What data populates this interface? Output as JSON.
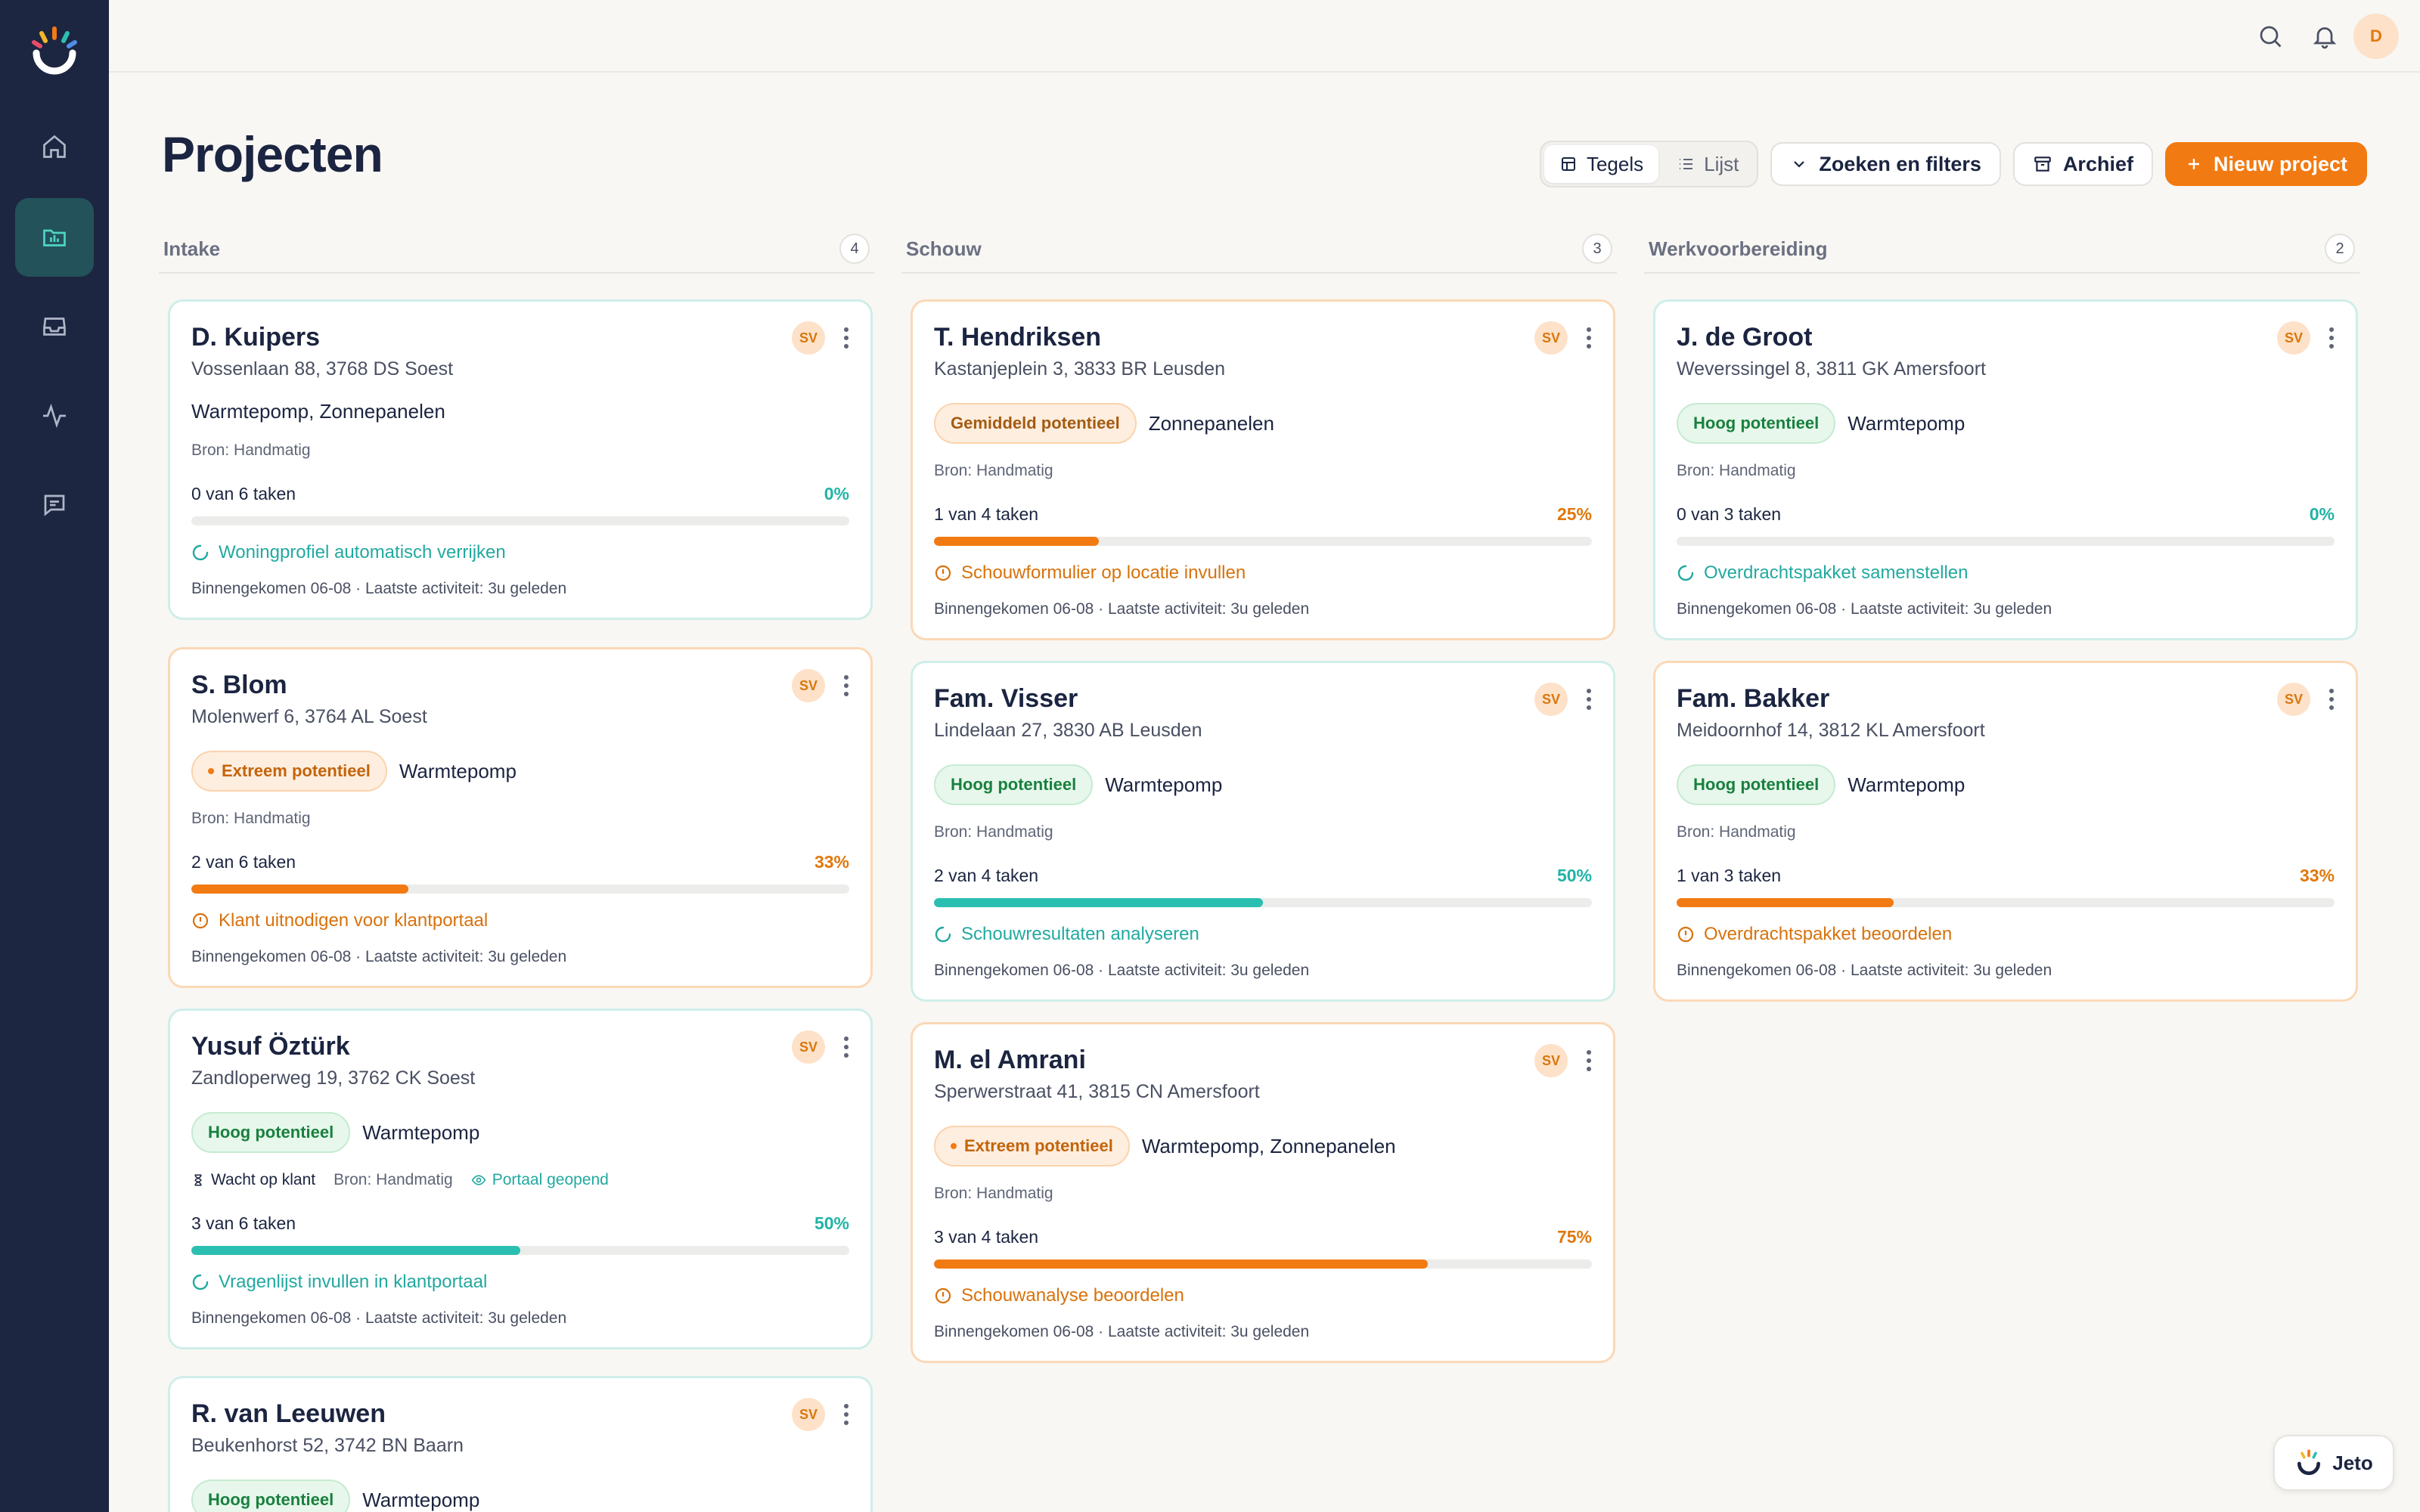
{
  "sidebar": {
    "items": [
      {
        "name": "home-icon",
        "active": false
      },
      {
        "name": "projects-folder-icon",
        "active": true
      },
      {
        "name": "inbox-icon",
        "active": false
      },
      {
        "name": "activity-icon",
        "active": false
      },
      {
        "name": "messages-icon",
        "active": false
      }
    ]
  },
  "topbar": {
    "avatar_initial": "D"
  },
  "page": {
    "title": "Projecten"
  },
  "toolbar": {
    "view_tiles": "Tegels",
    "view_list": "Lijst",
    "filters": "Zoeken en filters",
    "archive": "Archief",
    "new_project": "Nieuw project"
  },
  "columns": [
    {
      "title": "Intake",
      "count": "4",
      "cards": [
        {
          "name": "D. Kuipers",
          "address": "Vossenlaan 88, 3768 DS Soest",
          "assignee": "SV",
          "products": "Warmtepomp, Zonnepanelen",
          "source": "Bron: Handmatig",
          "tasks": "0 van 6 taken",
          "pct": "0%",
          "progress": 0,
          "next": "Woningprofiel automatisch verrijken",
          "footer": "Binnengekomen 06-08 · Laatste activiteit: 3u geleden"
        },
        {
          "name": "S. Blom",
          "address": "Molenwerf 6, 3764 AL Soest",
          "assignee": "SV",
          "badge": "Extreem potentieel",
          "products": "Warmtepomp",
          "source": "Bron: Handmatig",
          "tasks": "2 van 6 taken",
          "pct": "33%",
          "progress": 0.33,
          "next": "Klant uitnodigen voor klantportaal",
          "footer": "Binnengekomen 06-08 · Laatste activiteit: 3u geleden"
        },
        {
          "name": "Yusuf Öztürk",
          "address": "Zandloperweg 19, 3762 CK Soest",
          "assignee": "SV",
          "badge": "Hoog potentieel",
          "products": "Warmtepomp",
          "status": "Wacht op klant",
          "source": "Bron: Handmatig",
          "portal": "Portaal geopend",
          "tasks": "3 van 6 taken",
          "pct": "50%",
          "progress": 0.5,
          "next": "Vragenlijst invullen in klantportaal",
          "footer": "Binnengekomen 06-08 · Laatste activiteit: 3u geleden"
        },
        {
          "name": "R. van Leeuwen",
          "address": "Beukenhorst 52, 3742 BN Baarn",
          "assignee": "SV",
          "badge": "Hoog potentieel",
          "products": "Warmtepomp"
        }
      ]
    },
    {
      "title": "Schouw",
      "count": "3",
      "cards": [
        {
          "name": "T. Hendriksen",
          "address": "Kastanjeplein 3, 3833 BR Leusden",
          "assignee": "SV",
          "badge": "Gemiddeld potentieel",
          "products": "Zonnepanelen",
          "source": "Bron: Handmatig",
          "tasks": "1 van 4 taken",
          "pct": "25%",
          "progress": 0.25,
          "next": "Schouwformulier op locatie invullen",
          "footer": "Binnengekomen 06-08 · Laatste activiteit: 3u geleden"
        },
        {
          "name": "Fam. Visser",
          "address": "Lindelaan 27, 3830 AB Leusden",
          "assignee": "SV",
          "badge": "Hoog potentieel",
          "products": "Warmtepomp",
          "source": "Bron: Handmatig",
          "tasks": "2 van 4 taken",
          "pct": "50%",
          "progress": 0.5,
          "next": "Schouwresultaten analyseren",
          "footer": "Binnengekomen 06-08 · Laatste activiteit: 3u geleden"
        },
        {
          "name": "M. el Amrani",
          "address": "Sperwerstraat 41, 3815 CN Amersfoort",
          "assignee": "SV",
          "badge": "Extreem potentieel",
          "products": "Warmtepomp, Zonnepanelen",
          "source": "Bron: Handmatig",
          "tasks": "3 van 4 taken",
          "pct": "75%",
          "progress": 0.75,
          "next": "Schouwanalyse beoordelen",
          "footer": "Binnengekomen 06-08 · Laatste activiteit: 3u geleden"
        }
      ]
    },
    {
      "title": "Werkvoorbereiding",
      "count": "2",
      "cards": [
        {
          "name": "J. de Groot",
          "address": "Weverssingel 8, 3811 GK Amersfoort",
          "assignee": "SV",
          "badge": "Hoog potentieel",
          "products": "Warmtepomp",
          "source": "Bron: Handmatig",
          "tasks": "0 van 3 taken",
          "pct": "0%",
          "progress": 0,
          "next": "Overdrachtspakket samenstellen",
          "footer": "Binnengekomen 06-08 · Laatste activiteit: 3u geleden"
        },
        {
          "name": "Fam. Bakker",
          "address": "Meidoornhof 14, 3812 KL Amersfoort",
          "assignee": "SV",
          "badge": "Hoog potentieel",
          "products": "Warmtepomp",
          "source": "Bron: Handmatig",
          "tasks": "1 van 3 taken",
          "pct": "33%",
          "progress": 0.33,
          "next": "Overdrachtspakket beoordelen",
          "footer": "Binnengekomen 06-08 · Laatste activiteit: 3u geleden"
        }
      ]
    }
  ],
  "assistant": {
    "label": "Jeto"
  },
  "colors": {
    "accent": "#f27a12",
    "teal": "#2bbfb1",
    "sidebar": "#1c2641"
  }
}
